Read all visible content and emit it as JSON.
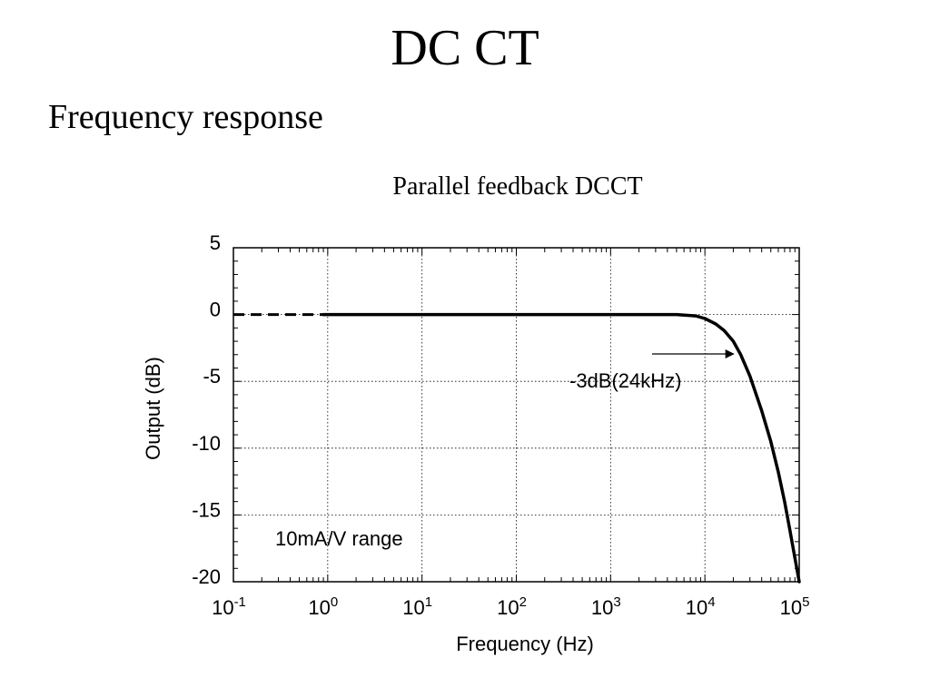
{
  "slide": {
    "title": "DC CT",
    "subtitle": "Frequency response"
  },
  "chart_data": {
    "type": "line",
    "title": "Parallel feedback DCCT",
    "xlabel": "Frequency (Hz)",
    "ylabel": "Output (dB)",
    "x_scale": "log",
    "xlim": [
      0.1,
      100000
    ],
    "ylim": [
      -20,
      5
    ],
    "x_tick_base": "10",
    "x_tick_exponents": [
      "-1",
      "0",
      "1",
      "2",
      "3",
      "4",
      "5"
    ],
    "y_ticks": [
      "5",
      "0",
      "-5",
      "-10",
      "-15",
      "-20"
    ],
    "grid": true,
    "series": [
      {
        "style": "dashed",
        "x": [
          0.1,
          0.9
        ],
        "y": [
          0,
          0
        ]
      },
      {
        "style": "solid",
        "x": [
          0.9,
          1,
          10,
          100,
          1000,
          5000,
          8000,
          10000,
          13000,
          16000,
          20000,
          24000,
          30000,
          40000,
          50000,
          60000,
          70000,
          80000,
          90000,
          100000
        ],
        "y": [
          0,
          0,
          0,
          0,
          0,
          0,
          -0.1,
          -0.3,
          -0.7,
          -1.2,
          -2.0,
          -3.0,
          -4.6,
          -7.2,
          -9.5,
          -11.8,
          -14.0,
          -16.2,
          -18.2,
          -20.0
        ]
      }
    ],
    "annotations": [
      {
        "text": "-3dB(24kHz)",
        "x": 24000,
        "y": -3
      },
      {
        "text": "10mA/V range"
      }
    ]
  }
}
